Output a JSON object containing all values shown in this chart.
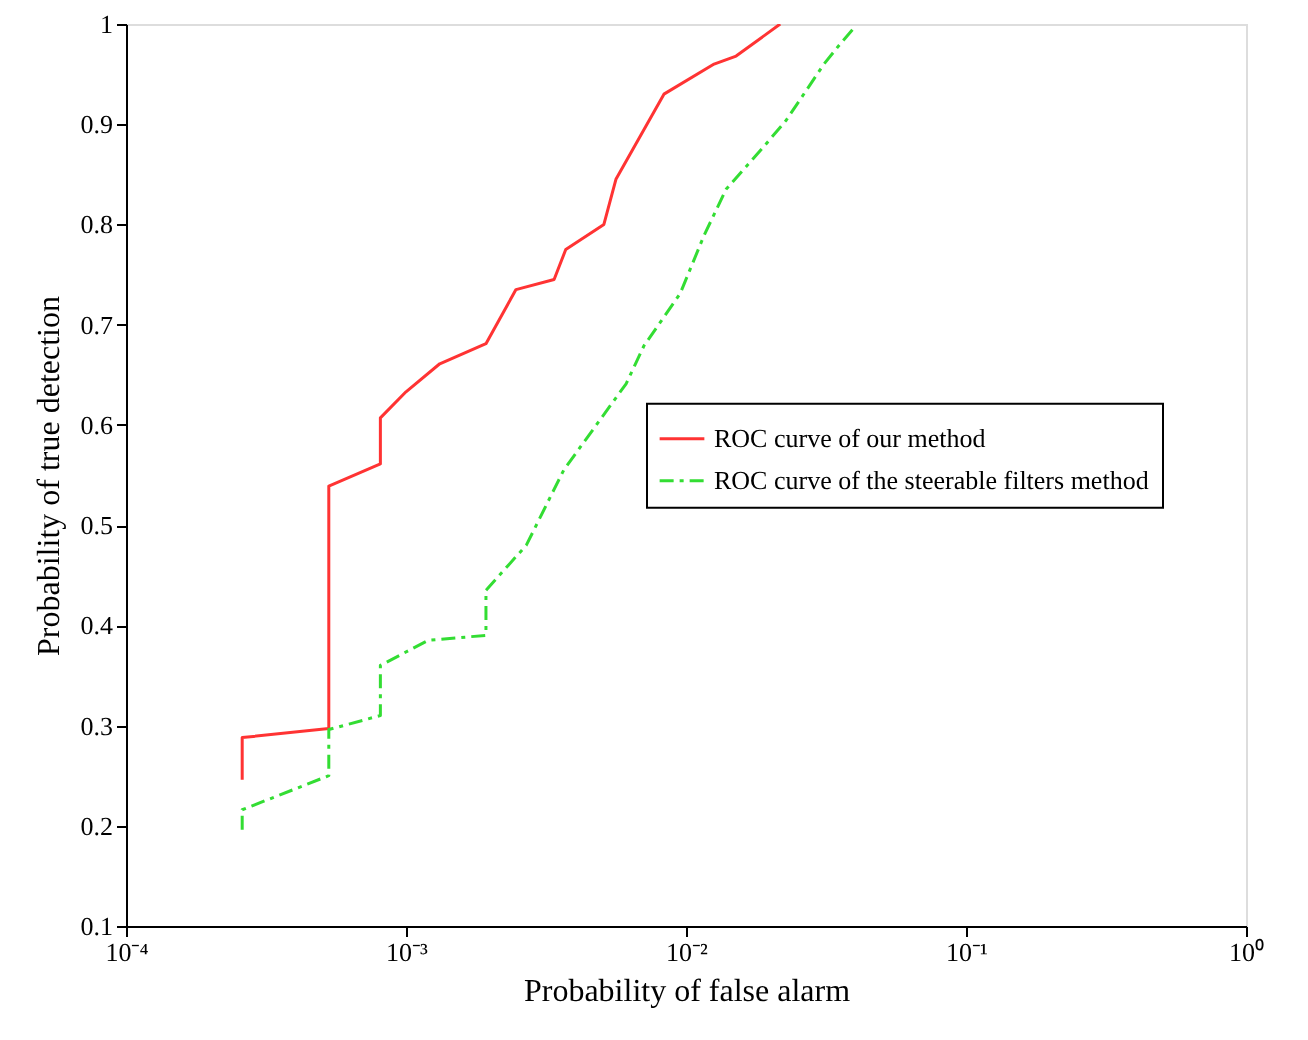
{
  "chart_data": {
    "type": "line",
    "xlabel": "Probability of false alarm",
    "ylabel": "Probability of true detection",
    "log": "x",
    "xlim": [
      0.0001,
      1
    ],
    "ylim": [
      0.1,
      1
    ],
    "xticks": [
      {
        "value": 0.0001,
        "label": "10⁻⁴"
      },
      {
        "value": 0.001,
        "label": "10⁻³"
      },
      {
        "value": 0.01,
        "label": "10⁻²"
      },
      {
        "value": 0.1,
        "label": "10⁻¹"
      },
      {
        "value": 1,
        "label": "10⁰"
      }
    ],
    "yticks": [
      0.1,
      0.2,
      0.3,
      0.4,
      0.5,
      0.6,
      0.7,
      0.8,
      0.9,
      1
    ],
    "grid": false,
    "legend": "right",
    "marker": "none",
    "series": [
      {
        "name": "ROC curve of our method",
        "color": "#ff3333",
        "line_style": "solid",
        "x": [
          0.00026,
          0.00026,
          0.00053,
          0.00053,
          0.00081,
          0.00081,
          0.001,
          0.00132,
          0.00193,
          0.00247,
          0.00338,
          0.00372,
          0.00509,
          0.00562,
          0.00834,
          0.0126,
          0.0151,
          0.0217
        ],
        "values": [
          0.246,
          0.288,
          0.297,
          0.539,
          0.561,
          0.607,
          0.633,
          0.661,
          0.681,
          0.735,
          0.745,
          0.775,
          0.8,
          0.845,
          0.93,
          0.96,
          0.968,
          1.0
        ]
      },
      {
        "name": "ROC curve of the steerable filters method",
        "color": "#33dd33",
        "line_style": "dashed",
        "x": [
          0.00026,
          0.00026,
          0.00053,
          0.00053,
          0.00081,
          0.00081,
          0.0012,
          0.00193,
          0.00193,
          0.00269,
          0.00366,
          0.00611,
          0.00708,
          0.00953,
          0.0116,
          0.0139,
          0.019,
          0.0228,
          0.0311,
          0.0355,
          0.0404
        ],
        "values": [
          0.196,
          0.216,
          0.25,
          0.296,
          0.31,
          0.36,
          0.385,
          0.39,
          0.435,
          0.48,
          0.555,
          0.641,
          0.679,
          0.731,
          0.789,
          0.835,
          0.878,
          0.904,
          0.96,
          0.98,
          0.998
        ]
      }
    ]
  }
}
